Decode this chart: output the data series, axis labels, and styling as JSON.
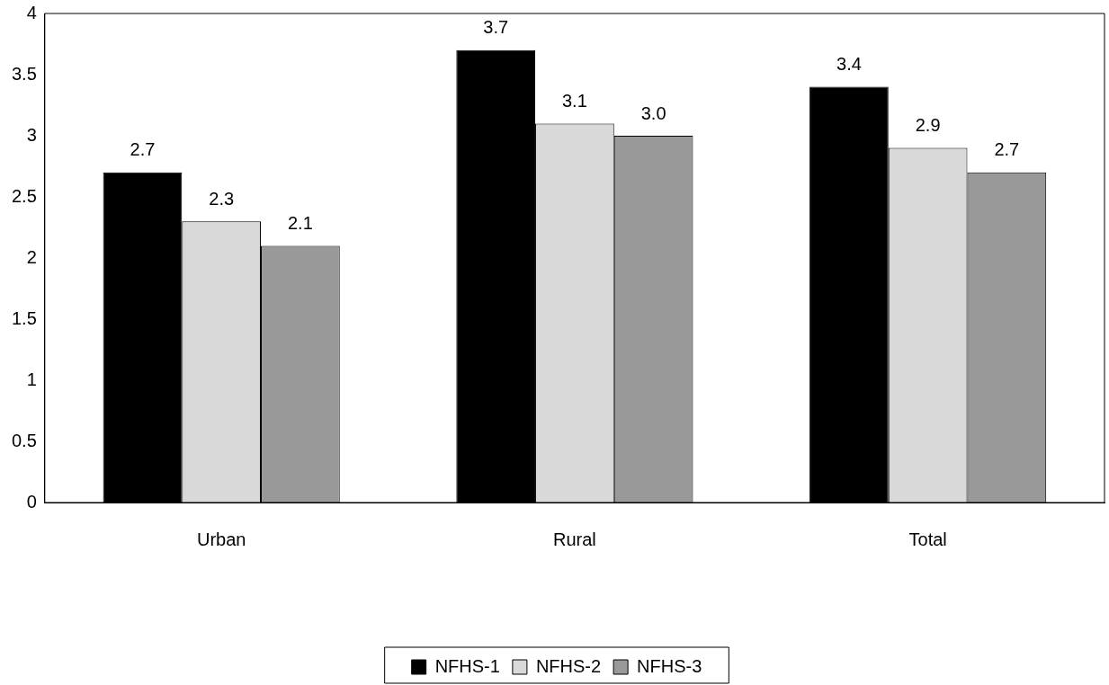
{
  "chart_data": {
    "type": "bar",
    "categories": [
      "Urban",
      "Rural",
      "Total"
    ],
    "series": [
      {
        "name": "NFHS-1",
        "color": "#000000",
        "values": [
          2.7,
          3.7,
          3.4
        ],
        "value_labels": [
          "2.7",
          "3.7",
          "3.4"
        ]
      },
      {
        "name": "NFHS-2",
        "color": "#d9d9d9",
        "values": [
          2.3,
          3.1,
          2.9
        ],
        "value_labels": [
          "2.3",
          "3.1",
          "2.9"
        ]
      },
      {
        "name": "NFHS-3",
        "color": "#999999",
        "values": [
          2.1,
          3.0,
          2.7
        ],
        "value_labels": [
          "2.1",
          "3.0",
          "2.7"
        ]
      }
    ],
    "ylim": [
      0,
      4
    ],
    "yticks": [
      0,
      0.5,
      1,
      1.5,
      2,
      2.5,
      3,
      3.5,
      4
    ],
    "grid": false,
    "legend": "bottom"
  }
}
